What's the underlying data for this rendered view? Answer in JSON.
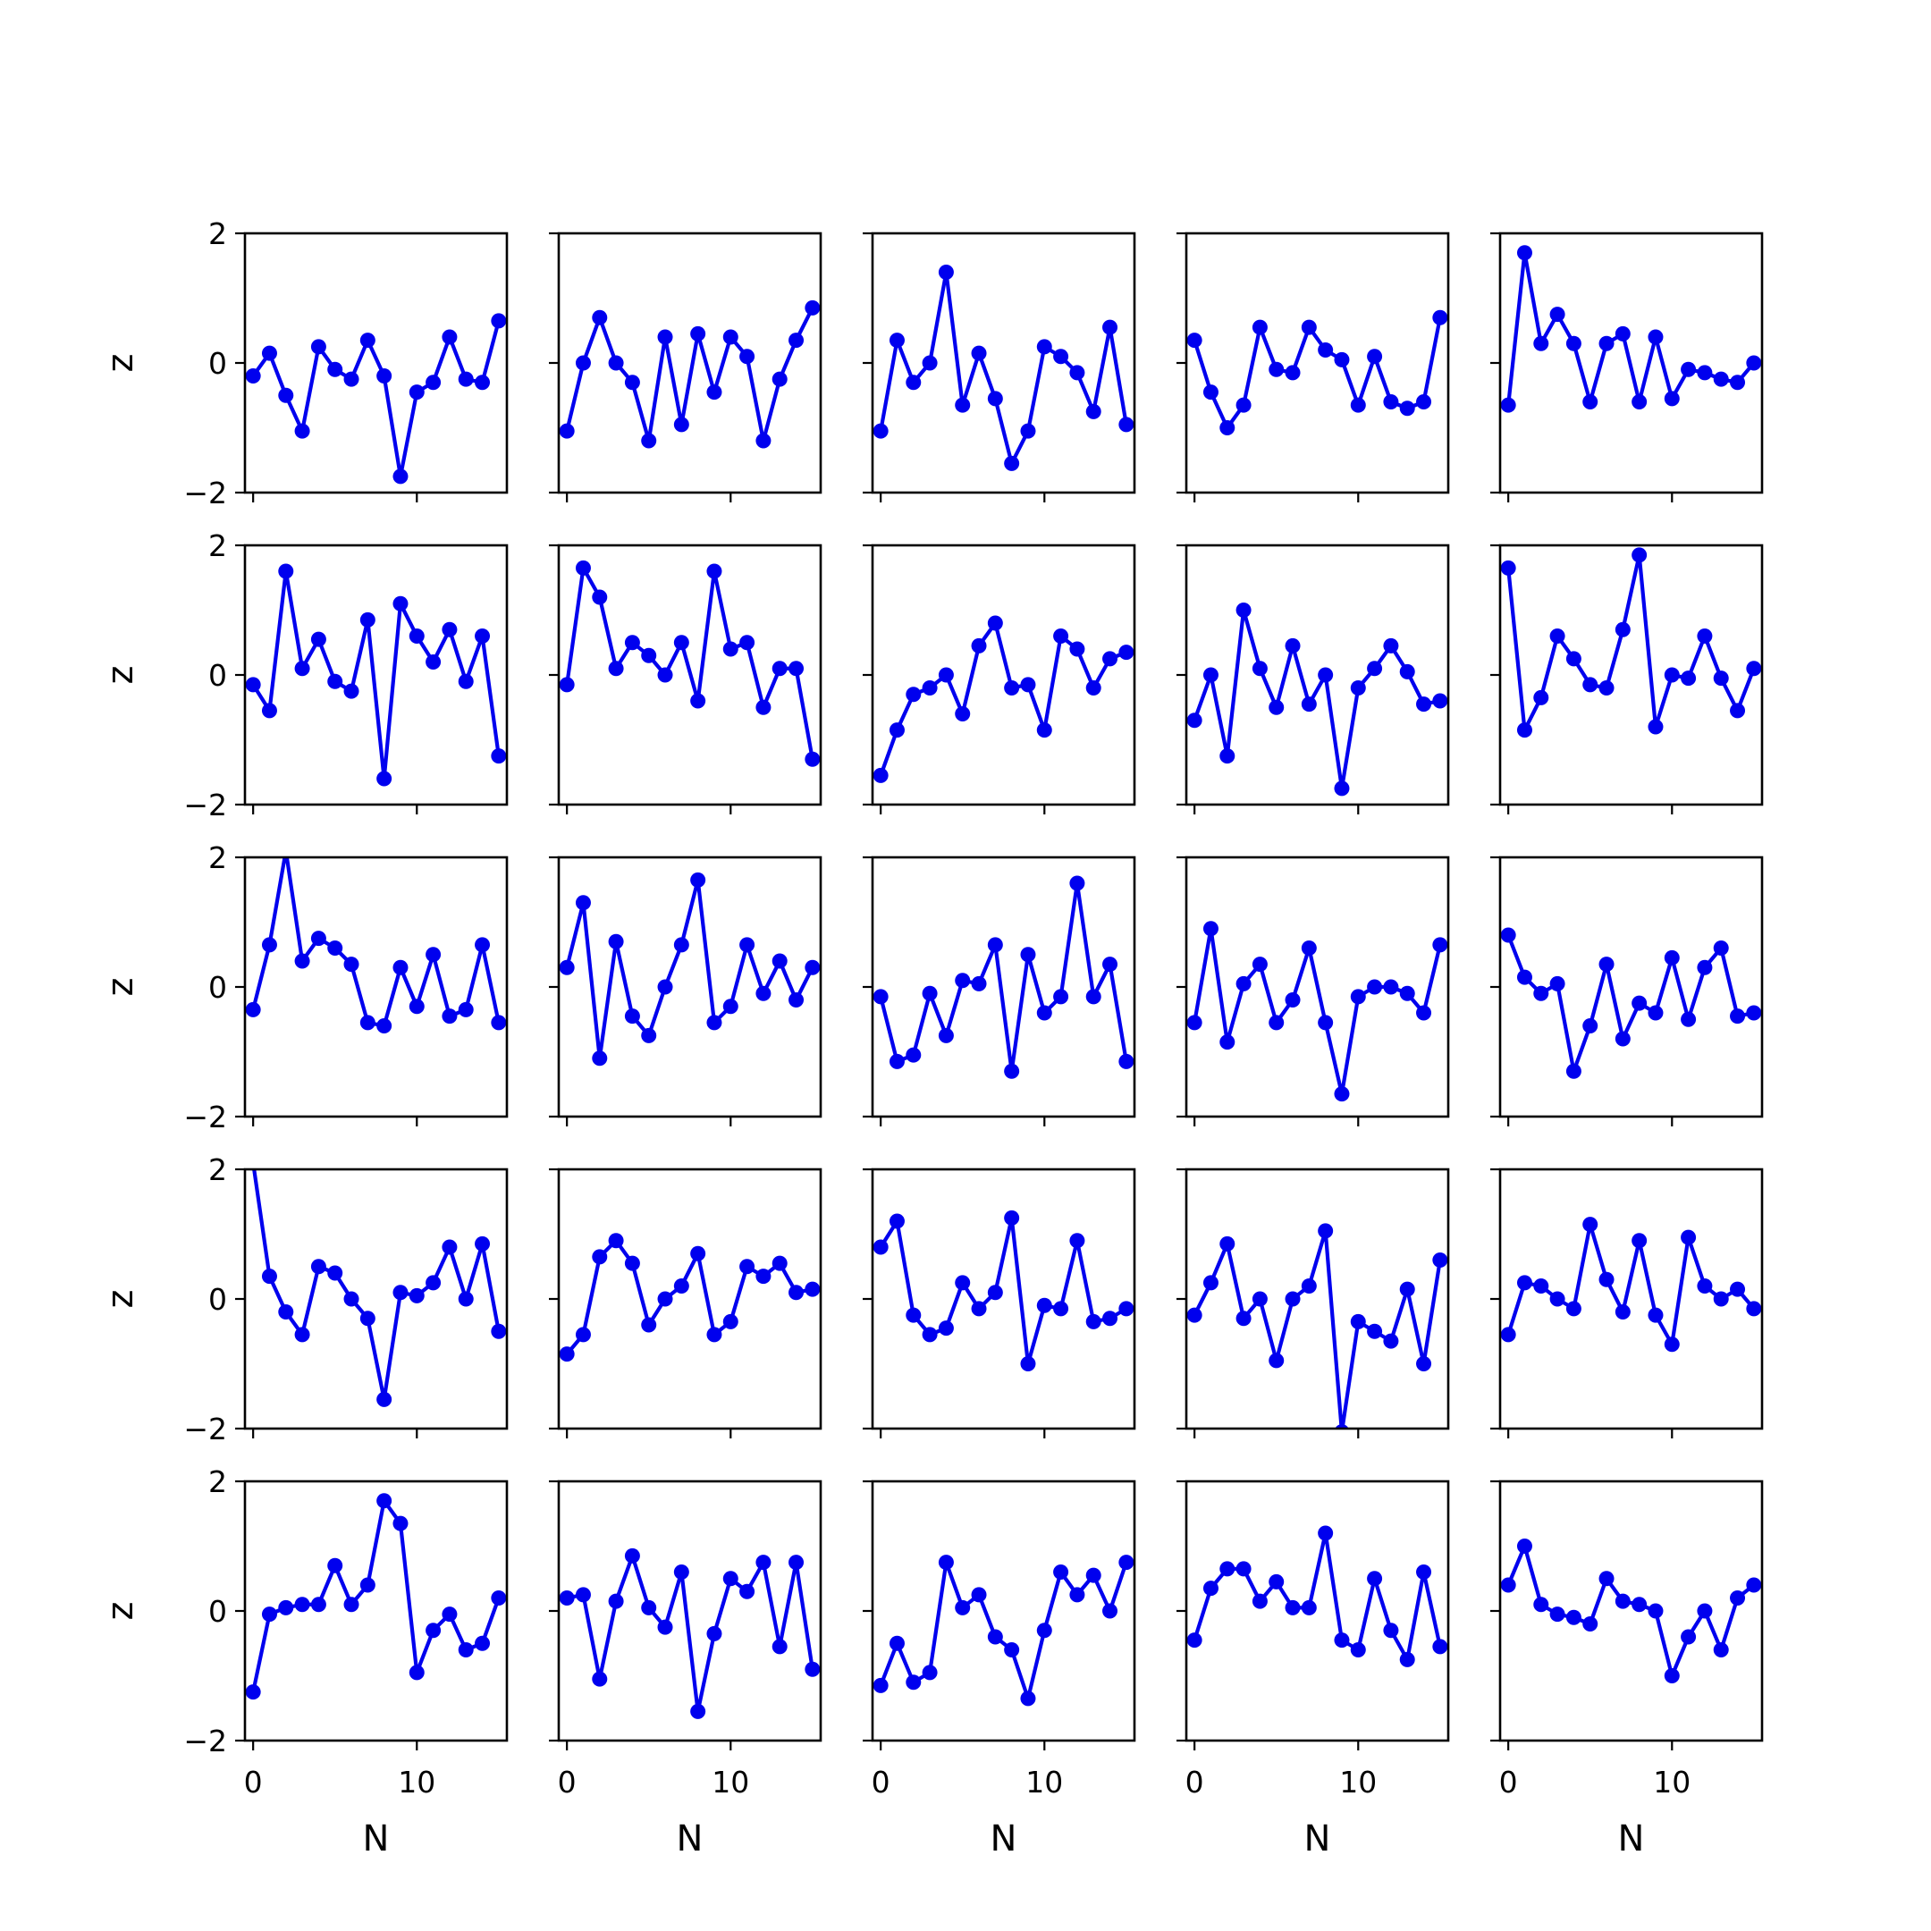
{
  "figure": {
    "line_color": "#0000ee",
    "axes_color": "#000000"
  },
  "chart_data": {
    "type": "line",
    "grid_rows": 5,
    "grid_cols": 5,
    "x": [
      0,
      1,
      2,
      3,
      4,
      5,
      6,
      7,
      8,
      9,
      10,
      11,
      12,
      13,
      14,
      15
    ],
    "xlim": [
      -0.5,
      15.5
    ],
    "ylim": [
      -2,
      2
    ],
    "xticks": [
      0,
      10
    ],
    "yticks": [
      -2,
      0,
      2
    ],
    "xtick_labels": [
      "0",
      "10"
    ],
    "ytick_labels": [
      "−2",
      "0",
      "2"
    ],
    "xlabel": "N",
    "ylabel": "z",
    "grid": false,
    "marker": "circle",
    "panels": [
      [
        {
          "values": [
            -0.2,
            0.15,
            -0.5,
            -1.05,
            0.25,
            -0.1,
            -0.25,
            0.35,
            -0.2,
            -1.75,
            -0.45,
            -0.3,
            0.4,
            -0.25,
            -0.3,
            0.65
          ]
        },
        {
          "values": [
            -1.05,
            0.0,
            0.7,
            0.0,
            -0.3,
            -1.2,
            0.4,
            -0.95,
            0.45,
            -0.45,
            0.4,
            0.1,
            -1.2,
            -0.25,
            0.35,
            0.85
          ]
        },
        {
          "values": [
            -1.05,
            0.35,
            -0.3,
            0.0,
            1.4,
            -0.65,
            0.15,
            -0.55,
            -1.55,
            -1.05,
            0.25,
            0.1,
            -0.15,
            -0.75,
            0.55,
            -0.95
          ]
        },
        {
          "values": [
            0.35,
            -0.45,
            -1.0,
            -0.65,
            0.55,
            -0.1,
            -0.15,
            0.55,
            0.2,
            0.05,
            -0.65,
            0.1,
            -0.6,
            -0.7,
            -0.6,
            0.7
          ]
        },
        {
          "values": [
            -0.65,
            1.7,
            0.3,
            0.75,
            0.3,
            -0.6,
            0.3,
            0.45,
            -0.6,
            0.4,
            -0.55,
            -0.1,
            -0.15,
            -0.25,
            -0.3,
            0.0
          ]
        }
      ],
      [
        {
          "values": [
            -0.15,
            -0.55,
            1.6,
            0.1,
            0.55,
            -0.1,
            -0.25,
            0.85,
            -1.6,
            1.1,
            0.6,
            0.2,
            0.7,
            -0.1,
            0.6,
            -1.25
          ]
        },
        {
          "values": [
            -0.15,
            1.65,
            1.2,
            0.1,
            0.5,
            0.3,
            0.0,
            0.5,
            -0.4,
            1.6,
            0.4,
            0.5,
            -0.5,
            0.1,
            0.1,
            -1.3
          ]
        },
        {
          "values": [
            -1.55,
            -0.85,
            -0.3,
            -0.2,
            0.0,
            -0.6,
            0.45,
            0.8,
            -0.2,
            -0.15,
            -0.85,
            0.6,
            0.4,
            -0.2,
            0.25,
            0.35
          ]
        },
        {
          "values": [
            -0.7,
            0.0,
            -1.25,
            1.0,
            0.1,
            -0.5,
            0.45,
            -0.45,
            0.0,
            -1.75,
            -0.2,
            0.1,
            0.45,
            0.05,
            -0.45,
            -0.4
          ]
        },
        {
          "values": [
            1.65,
            -0.85,
            -0.35,
            0.6,
            0.25,
            -0.15,
            -0.2,
            0.7,
            1.85,
            -0.8,
            0.0,
            -0.05,
            0.6,
            -0.05,
            -0.55,
            0.1
          ]
        }
      ],
      [
        {
          "values": [
            -0.35,
            0.65,
            2.1,
            0.4,
            0.75,
            0.6,
            0.35,
            -0.55,
            -0.6,
            0.3,
            -0.3,
            0.5,
            -0.45,
            -0.35,
            0.65,
            -0.55
          ]
        },
        {
          "values": [
            0.3,
            1.3,
            -1.1,
            0.7,
            -0.45,
            -0.75,
            0.0,
            0.65,
            1.65,
            -0.55,
            -0.3,
            0.65,
            -0.1,
            0.4,
            -0.2,
            0.3
          ]
        },
        {
          "values": [
            -0.15,
            -1.15,
            -1.05,
            -0.1,
            -0.75,
            0.1,
            0.05,
            0.65,
            -1.3,
            0.5,
            -0.4,
            -0.15,
            1.6,
            -0.15,
            0.35,
            -1.15
          ]
        },
        {
          "values": [
            -0.55,
            0.9,
            -0.85,
            0.05,
            0.35,
            -0.55,
            -0.2,
            0.6,
            -0.55,
            -1.65,
            -0.15,
            0.0,
            0.0,
            -0.1,
            -0.4,
            0.65
          ]
        },
        {
          "values": [
            0.8,
            0.15,
            -0.1,
            0.05,
            -1.3,
            -0.6,
            0.35,
            -0.8,
            -0.25,
            -0.4,
            0.45,
            -0.5,
            0.3,
            0.6,
            -0.45,
            -0.4
          ]
        }
      ],
      [
        {
          "values": [
            2.1,
            0.35,
            -0.2,
            -0.55,
            0.5,
            0.4,
            0.0,
            -0.3,
            -1.55,
            0.1,
            0.05,
            0.25,
            0.8,
            0.0,
            0.85,
            -0.5
          ]
        },
        {
          "values": [
            -0.85,
            -0.55,
            0.65,
            0.9,
            0.55,
            -0.4,
            0.0,
            0.2,
            0.7,
            -0.55,
            -0.35,
            0.5,
            0.35,
            0.55,
            0.1,
            0.15
          ]
        },
        {
          "values": [
            0.8,
            1.2,
            -0.25,
            -0.55,
            -0.45,
            0.25,
            -0.15,
            0.1,
            1.25,
            -1.0,
            -0.1,
            -0.15,
            0.9,
            -0.35,
            -0.3,
            -0.15
          ]
        },
        {
          "values": [
            -0.25,
            0.25,
            0.85,
            -0.3,
            0.0,
            -0.95,
            0.0,
            0.2,
            1.05,
            -2.05,
            -0.35,
            -0.5,
            -0.65,
            0.15,
            -1.0,
            0.6
          ]
        },
        {
          "values": [
            -0.55,
            0.25,
            0.2,
            0.0,
            -0.15,
            1.15,
            0.3,
            -0.2,
            0.9,
            -0.25,
            -0.7,
            0.95,
            0.2,
            0.0,
            0.15,
            -0.15
          ]
        }
      ],
      [
        {
          "values": [
            -1.25,
            -0.05,
            0.05,
            0.1,
            0.1,
            0.7,
            0.1,
            0.4,
            1.7,
            1.35,
            -0.95,
            -0.3,
            -0.05,
            -0.6,
            -0.5,
            0.2
          ]
        },
        {
          "values": [
            0.2,
            0.25,
            -1.05,
            0.15,
            0.85,
            0.05,
            -0.25,
            0.6,
            -1.55,
            -0.35,
            0.5,
            0.3,
            0.75,
            -0.55,
            0.75,
            -0.9
          ]
        },
        {
          "values": [
            -1.15,
            -0.5,
            -1.1,
            -0.95,
            0.75,
            0.05,
            0.25,
            -0.4,
            -0.6,
            -1.35,
            -0.3,
            0.6,
            0.25,
            0.55,
            0.0,
            0.75
          ]
        },
        {
          "values": [
            -0.45,
            0.35,
            0.65,
            0.65,
            0.15,
            0.45,
            0.05,
            0.05,
            1.2,
            -0.45,
            -0.6,
            0.5,
            -0.3,
            -0.75,
            0.6,
            -0.55
          ]
        },
        {
          "values": [
            0.4,
            1.0,
            0.1,
            -0.05,
            -0.1,
            -0.2,
            0.5,
            0.15,
            0.1,
            0.0,
            -1.0,
            -0.4,
            0.0,
            -0.6,
            0.2,
            0.4
          ]
        }
      ]
    ]
  }
}
